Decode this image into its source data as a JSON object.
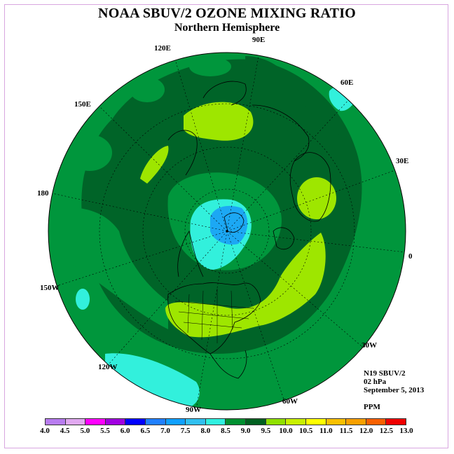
{
  "title": "NOAA SBUV/2 OZONE MIXING RATIO",
  "subtitle": "Northern Hemisphere",
  "info": {
    "instrument": "N19 SBUV/2",
    "level": "02 hPa",
    "date": "September 5, 2013",
    "units": "PPM"
  },
  "longitude_labels": [
    {
      "id": "lon-90e",
      "text": "90E"
    },
    {
      "id": "lon-60e",
      "text": "60E"
    },
    {
      "id": "lon-30e",
      "text": "30E"
    },
    {
      "id": "lon-0",
      "text": "0"
    },
    {
      "id": "lon-30w",
      "text": "30W"
    },
    {
      "id": "lon-60w",
      "text": "60W"
    },
    {
      "id": "lon-90w",
      "text": "90W"
    },
    {
      "id": "lon-120w",
      "text": "120W"
    },
    {
      "id": "lon-150w",
      "text": "150W"
    },
    {
      "id": "lon-180",
      "text": "180"
    },
    {
      "id": "lon-150e",
      "text": "150E"
    },
    {
      "id": "lon-120e",
      "text": "120E"
    }
  ],
  "colorbar": {
    "ticks": [
      "4.0",
      "4.5",
      "5.0",
      "5.5",
      "6.0",
      "6.5",
      "7.0",
      "7.5",
      "8.0",
      "8.5",
      "9.0",
      "9.5",
      "10.0",
      "10.5",
      "11.0",
      "11.5",
      "12.0",
      "12.5",
      "13.0"
    ],
    "colors": [
      "#b87cf0",
      "#e0a8f0",
      "#ff00ff",
      "#a000e0",
      "#0000ff",
      "#2080ff",
      "#10a0ff",
      "#30c0f0",
      "#30f0e0",
      "#009030",
      "#006020",
      "#90e000",
      "#c8f000",
      "#ffff00",
      "#f8c000",
      "#f8a000",
      "#f86000",
      "#f00000",
      "#8b5030"
    ]
  },
  "map": {
    "background_level": "8.0-8.5",
    "colors": {
      "band_8_0": "#00963c",
      "band_8_5": "#006428",
      "band_9_0": "#9ee600",
      "band_7_5": "#32f0dc",
      "band_7_0": "#1ca8f4"
    }
  }
}
